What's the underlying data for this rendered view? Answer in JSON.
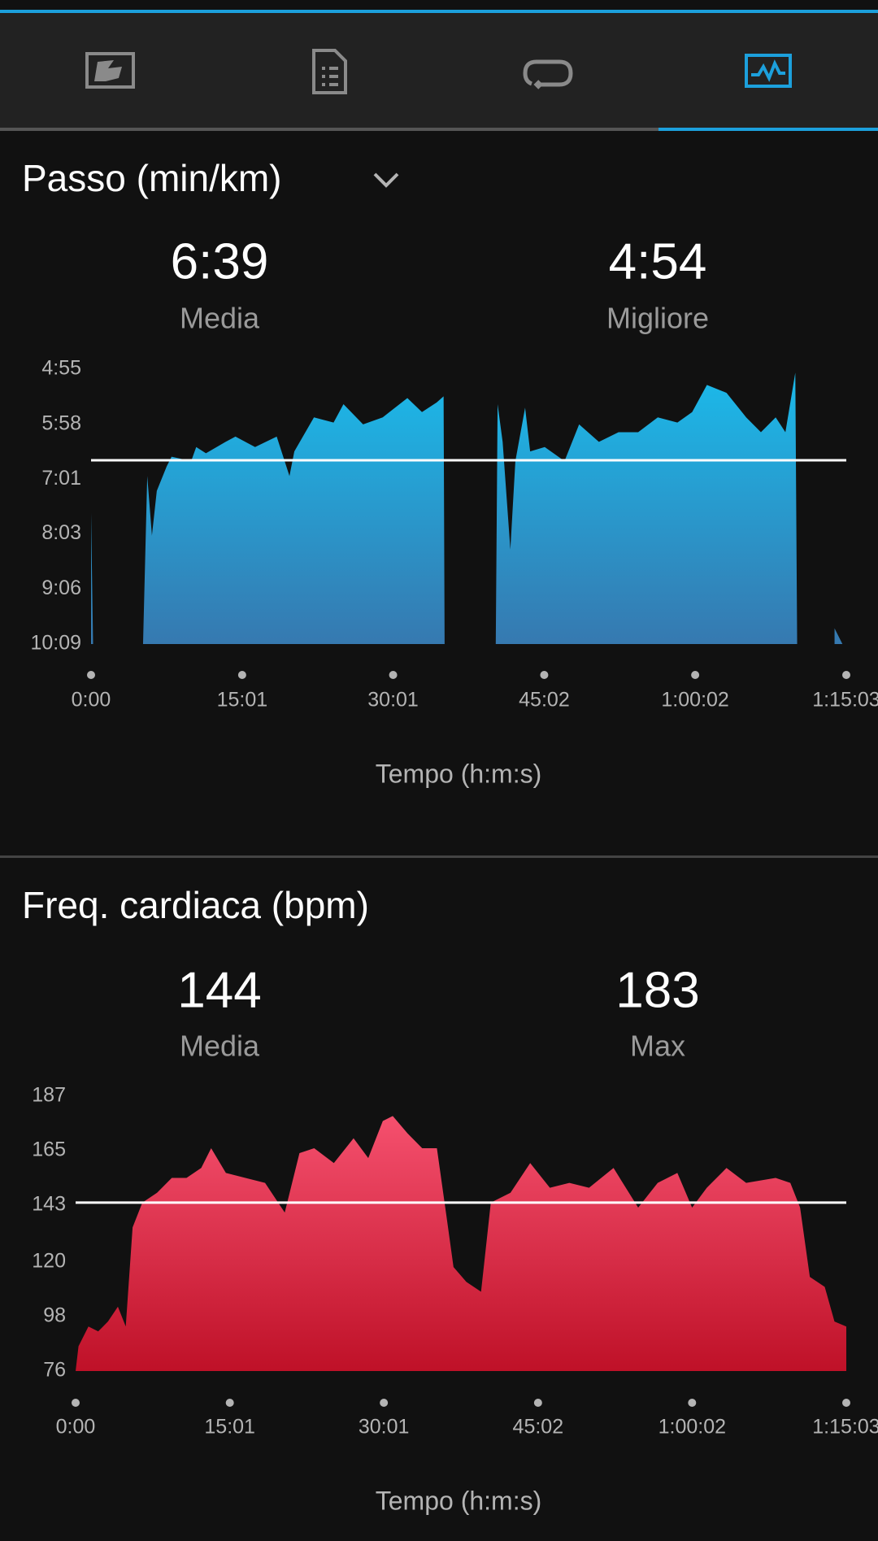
{
  "chart_data": [
    {
      "type": "area",
      "title": "Passo (min/km)",
      "stats": [
        {
          "value": 399,
          "label": "6:39",
          "name": "Media"
        },
        {
          "value": 294,
          "label": "4:54",
          "name": "Migliore"
        }
      ],
      "average_line": true,
      "x_label": "Tempo (h:m:s)",
      "xlim": [
        0,
        4503
      ],
      "xticks": [
        {
          "value": 0,
          "label": "0:00"
        },
        {
          "value": 901,
          "label": "15:01"
        },
        {
          "value": 1801,
          "label": "30:01"
        },
        {
          "value": 2702,
          "label": "45:02"
        },
        {
          "value": 3602,
          "label": "1:00:02"
        },
        {
          "value": 4503,
          "label": "1:15:03"
        }
      ],
      "ylim": [
        609,
        295
      ],
      "yticks": [
        {
          "value": 295,
          "label": "4:55"
        },
        {
          "value": 358,
          "label": "5:58"
        },
        {
          "value": 421,
          "label": "7:01"
        },
        {
          "value": 483,
          "label": "8:03"
        },
        {
          "value": 546,
          "label": "9:06"
        },
        {
          "value": 609,
          "label": "10:09"
        }
      ],
      "series": [
        {
          "color": "#1bbaea",
          "color_bottom": "#3679b0",
          "x": [
            0,
            12,
            41,
            310,
            335,
            363,
            392,
            451,
            480,
            597,
            627,
            685,
            802,
            861,
            978,
            1107,
            1183,
            1212,
            1329,
            1446,
            1505,
            1622,
            1739,
            1886,
            1973,
            2061,
            2102,
            2108,
            2266,
            2413,
            2424,
            2454,
            2500,
            2530,
            2588,
            2618,
            2705,
            2823,
            2910,
            3028,
            3145,
            3262,
            3379,
            3496,
            3584,
            3672,
            3789,
            3906,
            3994,
            4082,
            4140,
            4199,
            4210,
            4316,
            4433,
            4480
          ],
          "values": [
            459,
            609,
            null,
            609,
            417,
            485,
            434,
            406,
            395,
            400,
            384,
            391,
            378,
            372,
            384,
            372,
            417,
            389,
            350,
            356,
            335,
            358,
            350,
            328,
            344,
            333,
            326,
            609,
            null,
            609,
            335,
            378,
            501,
            400,
            339,
            389,
            384,
            400,
            358,
            378,
            367,
            367,
            350,
            356,
            344,
            313,
            322,
            350,
            367,
            350,
            367,
            299,
            609,
            null,
            591,
            609
          ]
        }
      ]
    },
    {
      "type": "area",
      "title": "Freq. cardiaca (bpm)",
      "stats": [
        {
          "value": 144,
          "name": "Media"
        },
        {
          "value": 183,
          "name": "Max"
        }
      ],
      "average_line": true,
      "x_label": "Tempo (h:m:s)",
      "xlim": [
        0,
        4503
      ],
      "xticks": [
        {
          "value": 0,
          "label": "0:00"
        },
        {
          "value": 901,
          "label": "15:01"
        },
        {
          "value": 1801,
          "label": "30:01"
        },
        {
          "value": 2702,
          "label": "45:02"
        },
        {
          "value": 3602,
          "label": "1:00:02"
        },
        {
          "value": 4503,
          "label": "1:15:03"
        }
      ],
      "ylim": [
        76,
        187
      ],
      "yticks": [
        187,
        165,
        143,
        120,
        98,
        76
      ],
      "series": [
        {
          "color": "#f5506e",
          "color_bottom": "#bf1128",
          "x": [
            0,
            17,
            75,
            132,
            189,
            247,
            293,
            333,
            390,
            476,
            562,
            648,
            734,
            792,
            878,
            992,
            1107,
            1222,
            1308,
            1394,
            1509,
            1624,
            1710,
            1795,
            1853,
            1939,
            2025,
            2111,
            2168,
            2208,
            2283,
            2369,
            2426,
            2541,
            2656,
            2771,
            2885,
            3000,
            3143,
            3287,
            3401,
            3516,
            3602,
            3688,
            3803,
            3918,
            4090,
            4176,
            4233,
            4290,
            4377,
            4434,
            4503
          ],
          "values": [
            76,
            86,
            94,
            92,
            96,
            102,
            94,
            134,
            144,
            148,
            154,
            154,
            158,
            166,
            156,
            154,
            152,
            140,
            164,
            166,
            160,
            170,
            162,
            177,
            179,
            172,
            166,
            166,
            138,
            118,
            112,
            108,
            144,
            148,
            160,
            150,
            152,
            150,
            158,
            142,
            152,
            156,
            142,
            150,
            158,
            152,
            154,
            152,
            142,
            114,
            110,
            96,
            94
          ]
        }
      ]
    }
  ]
}
